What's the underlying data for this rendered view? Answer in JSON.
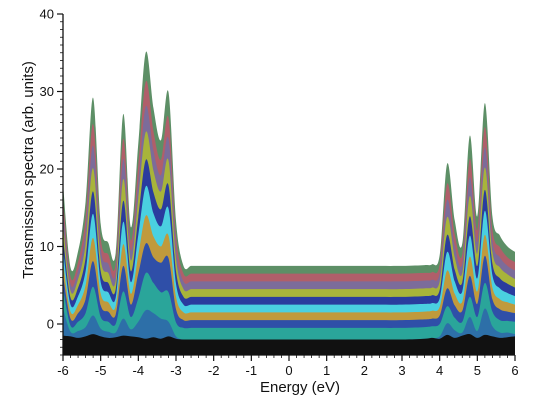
{
  "chart_data": {
    "type": "area",
    "title": "",
    "xlabel": "Energy (eV)",
    "ylabel": "Transmission spectra (arb. units)",
    "xlim": [
      -6,
      6
    ],
    "ylim": [
      -4,
      40
    ],
    "xticks": [
      -6,
      -5,
      -4,
      -3,
      -2,
      -1,
      0,
      1,
      2,
      3,
      4,
      5,
      6
    ],
    "yticks": [
      0,
      10,
      20,
      30,
      40
    ],
    "grid": false,
    "legend": "none",
    "style": "stacked waterfall of transmission spectra, curves offset vertically",
    "x": [
      -6.0,
      -5.8,
      -5.6,
      -5.4,
      -5.2,
      -5.0,
      -4.8,
      -4.6,
      -4.4,
      -4.2,
      -4.0,
      -3.8,
      -3.6,
      -3.4,
      -3.2,
      -3.0,
      -2.8,
      -2.6,
      -2.4,
      -2.2,
      -2.0,
      -1.8,
      -1.6,
      -1.0,
      0.0,
      1.0,
      2.0,
      3.0,
      3.6,
      3.8,
      4.0,
      4.2,
      4.4,
      4.6,
      4.8,
      5.0,
      5.2,
      5.4,
      5.6,
      5.8,
      6.0
    ],
    "series": [
      {
        "color": "#111111",
        "values": [
          -1.5,
          -1.6,
          -1.8,
          -1.6,
          -1.3,
          -1.6,
          -1.8,
          -1.7,
          -1.5,
          -1.6,
          -1.7,
          -1.9,
          -1.7,
          -1.9,
          -1.6,
          -1.9,
          -2.0,
          -2.0,
          -2.0,
          -2.0,
          -2.0,
          -2.0,
          -2.0,
          -2.0,
          -2.0,
          -2.0,
          -2.0,
          -2.0,
          -1.9,
          -1.8,
          -1.9,
          -1.4,
          -1.8,
          -1.5,
          -1.3,
          -1.8,
          -1.4,
          -1.6,
          -1.8,
          -1.7,
          -1.6
        ]
      },
      {
        "color": "#2d6fa8",
        "values": [
          3.5,
          0.6,
          0.9,
          1.2,
          2.4,
          1.0,
          0.8,
          0.6,
          2.2,
          0.9,
          2.0,
          3.7,
          3.1,
          2.6,
          1.9,
          0.3,
          0.0,
          0.0,
          0.0,
          0.0,
          0.0,
          0.0,
          0.0,
          0.0,
          0.0,
          0.0,
          0.0,
          0.0,
          0.0,
          0.0,
          0.3,
          1.5,
          1.0,
          0.4,
          2.2,
          0.9,
          3.4,
          1.3,
          0.7,
          0.6,
          0.3
        ]
      },
      {
        "color": "#2aa59a",
        "values": [
          2.6,
          0.8,
          1.2,
          1.8,
          3.7,
          1.5,
          1.3,
          1.1,
          3.5,
          1.6,
          3.0,
          4.8,
          3.9,
          3.4,
          3.8,
          1.8,
          1.5,
          1.5,
          1.5,
          1.5,
          1.5,
          1.5,
          1.5,
          1.5,
          1.5,
          1.5,
          1.5,
          1.5,
          1.5,
          1.5,
          1.6,
          2.2,
          1.6,
          1.4,
          2.6,
          1.8,
          3.3,
          1.9,
          1.6,
          1.5,
          1.6
        ]
      },
      {
        "color": "#2f4fa8",
        "values": [
          1.7,
          0.9,
          1.1,
          1.8,
          3.3,
          1.5,
          1.3,
          1.2,
          3.3,
          1.6,
          3.2,
          3.8,
          3.3,
          3.8,
          4.4,
          1.7,
          1.0,
          1.0,
          1.0,
          1.0,
          1.0,
          1.0,
          1.0,
          1.0,
          1.0,
          1.0,
          1.0,
          1.0,
          1.0,
          1.0,
          1.1,
          2.3,
          1.6,
          1.4,
          2.7,
          1.7,
          3.5,
          1.6,
          1.4,
          1.2,
          1.1
        ]
      },
      {
        "color": "#c09a3c",
        "values": [
          1.6,
          0.9,
          1.1,
          1.8,
          3.0,
          1.5,
          1.2,
          1.1,
          2.8,
          1.4,
          2.4,
          3.6,
          2.7,
          2.1,
          2.9,
          1.6,
          1.0,
          1.0,
          1.0,
          1.0,
          1.0,
          1.0,
          1.0,
          1.0,
          1.0,
          1.0,
          1.0,
          1.0,
          1.0,
          1.0,
          1.1,
          2.3,
          1.5,
          1.2,
          2.5,
          1.6,
          2.7,
          1.5,
          1.3,
          1.2,
          1.1
        ]
      },
      {
        "color": "#4ad0e0",
        "values": [
          1.7,
          0.9,
          1.1,
          1.8,
          3.1,
          1.5,
          1.3,
          1.1,
          2.9,
          1.5,
          2.6,
          3.8,
          3.0,
          2.6,
          3.5,
          1.7,
          1.0,
          1.0,
          1.0,
          1.0,
          1.0,
          1.0,
          1.0,
          1.0,
          1.0,
          1.0,
          1.0,
          1.0,
          1.0,
          1.0,
          1.1,
          2.4,
          1.6,
          1.3,
          2.7,
          1.7,
          3.1,
          1.6,
          1.4,
          1.2,
          1.1
        ]
      },
      {
        "color": "#2a3c9e",
        "values": [
          1.6,
          0.9,
          1.1,
          1.7,
          2.9,
          1.4,
          1.2,
          1.1,
          2.7,
          1.4,
          2.3,
          3.4,
          2.7,
          2.2,
          3.0,
          1.6,
          1.0,
          1.0,
          1.0,
          1.0,
          1.0,
          1.0,
          1.0,
          1.0,
          1.0,
          1.0,
          1.0,
          1.0,
          1.0,
          1.0,
          1.1,
          2.2,
          1.5,
          1.2,
          2.5,
          1.6,
          2.7,
          1.5,
          1.3,
          1.2,
          1.1
        ]
      },
      {
        "color": "#a8b43a",
        "values": [
          1.7,
          0.9,
          1.1,
          1.8,
          3.0,
          1.5,
          1.3,
          1.1,
          2.8,
          1.4,
          2.4,
          3.6,
          2.8,
          2.3,
          3.2,
          1.6,
          1.0,
          1.0,
          1.0,
          1.0,
          1.0,
          1.0,
          1.0,
          1.0,
          1.0,
          1.0,
          1.0,
          1.0,
          1.0,
          1.0,
          1.1,
          2.3,
          1.6,
          1.2,
          2.6,
          1.6,
          2.9,
          1.5,
          1.4,
          1.2,
          1.1
        ]
      },
      {
        "color": "#7c6c9a",
        "values": [
          1.6,
          0.9,
          1.1,
          1.7,
          2.9,
          1.4,
          1.2,
          1.1,
          2.6,
          1.3,
          2.2,
          3.3,
          2.6,
          2.1,
          2.8,
          1.5,
          1.0,
          1.0,
          1.0,
          1.0,
          1.0,
          1.0,
          1.0,
          1.0,
          1.0,
          1.0,
          1.0,
          1.0,
          1.0,
          1.0,
          1.1,
          2.2,
          1.5,
          1.2,
          2.4,
          1.5,
          2.6,
          1.5,
          1.3,
          1.1,
          1.1
        ]
      },
      {
        "color": "#b05f6a",
        "values": [
          1.6,
          0.9,
          1.1,
          1.7,
          2.8,
          1.4,
          1.2,
          1.1,
          2.6,
          1.3,
          2.2,
          3.2,
          2.5,
          2.0,
          2.7,
          1.5,
          1.0,
          1.0,
          1.0,
          1.0,
          1.0,
          1.0,
          1.0,
          1.0,
          1.0,
          1.0,
          1.0,
          1.0,
          1.0,
          1.0,
          1.1,
          2.1,
          1.5,
          1.2,
          2.4,
          1.5,
          2.6,
          1.4,
          1.3,
          1.1,
          1.1
        ]
      },
      {
        "color": "#5d8f66",
        "values": [
          2.0,
          1.2,
          1.4,
          2.1,
          3.4,
          1.8,
          1.5,
          1.4,
          3.2,
          1.7,
          2.7,
          3.8,
          3.0,
          2.5,
          3.3,
          1.9,
          1.0,
          1.0,
          1.0,
          1.0,
          1.0,
          1.0,
          1.0,
          1.0,
          1.0,
          1.0,
          1.0,
          1.0,
          1.0,
          1.0,
          1.2,
          2.6,
          1.8,
          1.4,
          3.0,
          1.8,
          3.1,
          1.7,
          1.5,
          1.4,
          1.3
        ]
      }
    ]
  }
}
